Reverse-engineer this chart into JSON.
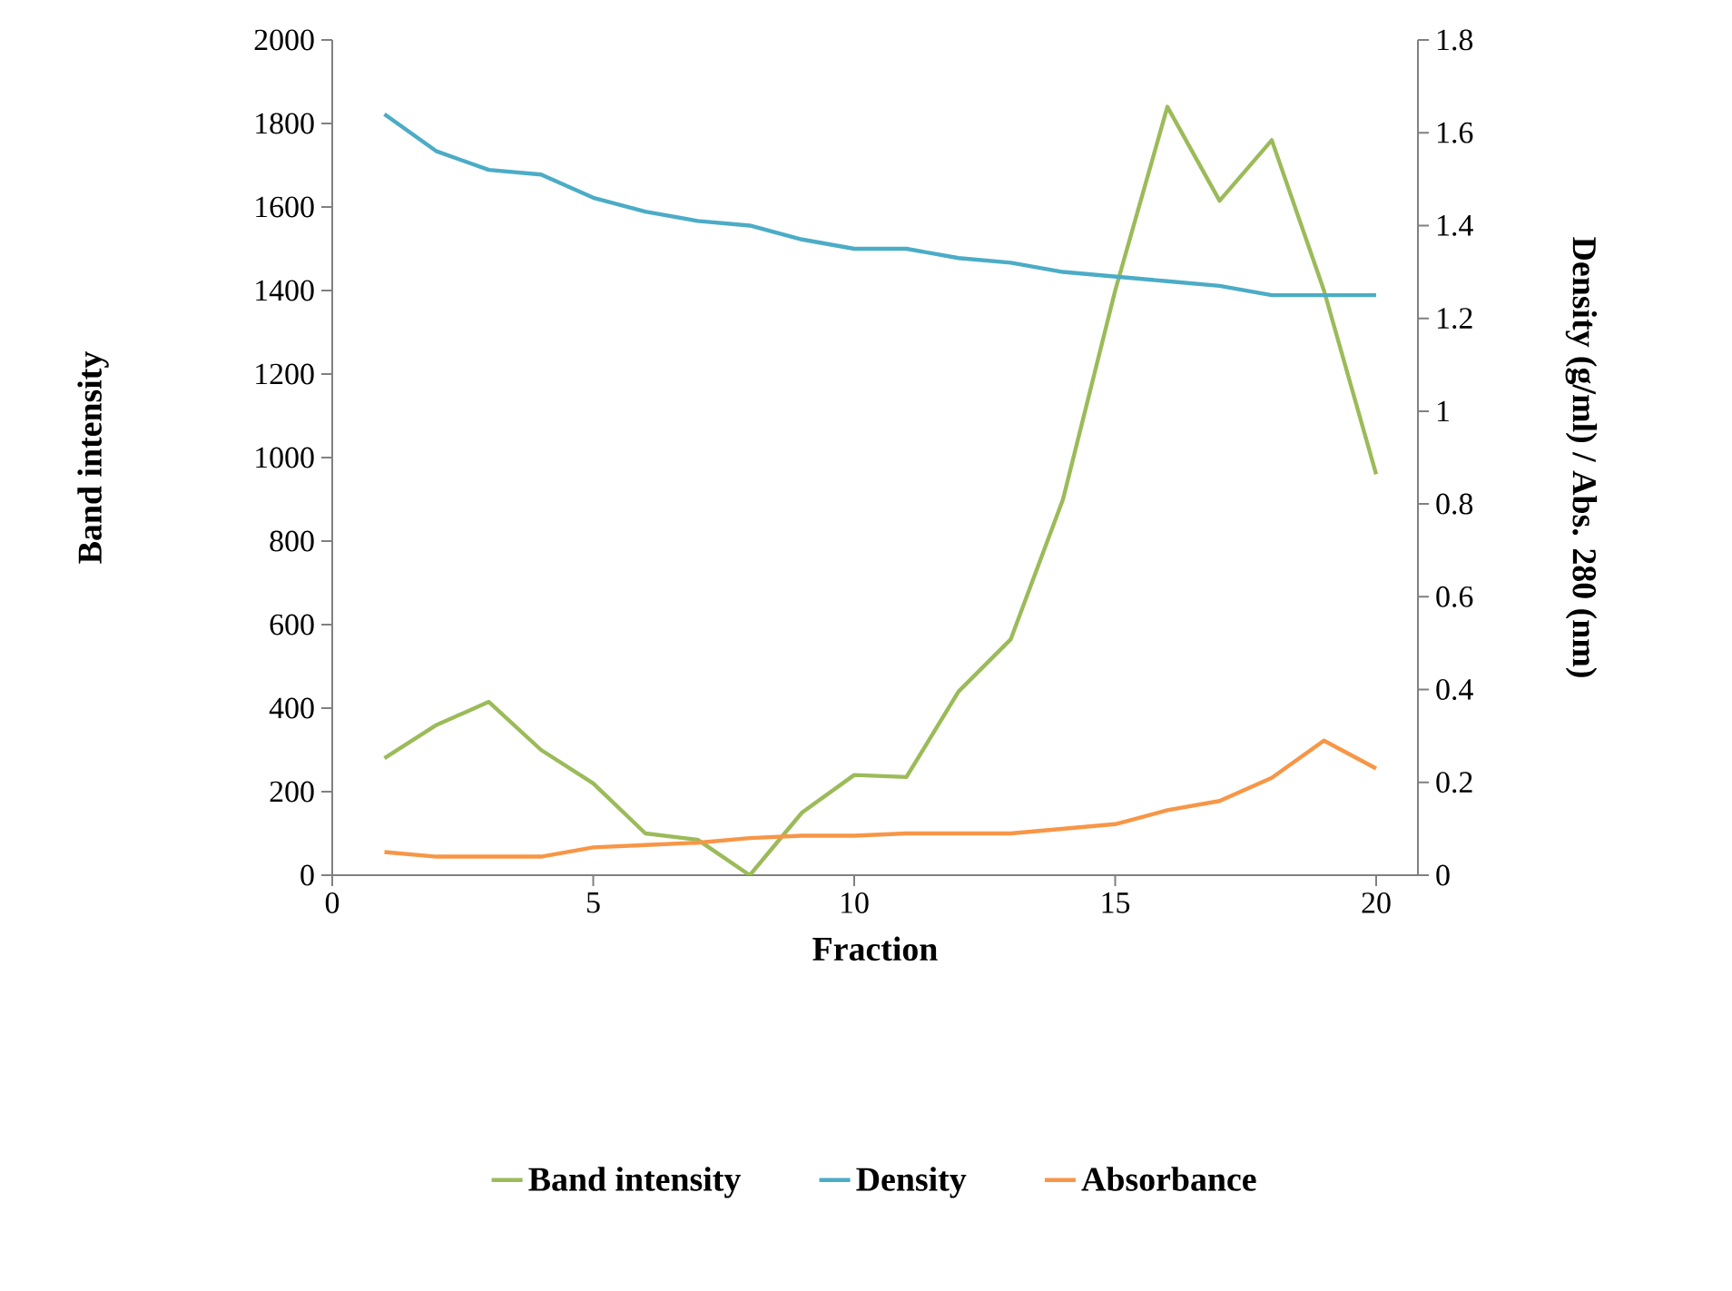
{
  "chart_data": {
    "type": "line",
    "xlabel": "Fraction",
    "ylabel": "Band intensity",
    "y2label": "Density (g/ml) / Abs. 280 (nm)",
    "legend": "bottom",
    "xlim": [
      0,
      20.8
    ],
    "xticks": [
      0,
      5,
      10,
      15,
      20
    ],
    "ylim": [
      0,
      2000
    ],
    "yticks": [
      0,
      200,
      400,
      600,
      800,
      1000,
      1200,
      1400,
      1600,
      1800,
      2000
    ],
    "y2lim": [
      0,
      1.8
    ],
    "y2ticks": [
      0,
      0.2,
      0.4,
      0.6,
      0.8,
      1,
      1.2,
      1.4,
      1.6,
      1.8
    ],
    "series": [
      {
        "name": "Band intensity",
        "color": "#9bbb59",
        "x": [
          1,
          2,
          3,
          4,
          5,
          6,
          7,
          8,
          9,
          10,
          11,
          12,
          13,
          14,
          15,
          16,
          17,
          18,
          19,
          20
        ],
        "values": [
          280,
          360,
          415,
          300,
          220,
          100,
          85,
          0,
          150,
          240,
          235,
          440,
          565,
          900,
          1400,
          1840,
          1615,
          1760,
          1400,
          960
        ]
      },
      {
        "name": "Density",
        "color": "#4bacc6",
        "axis": "y2",
        "x": [
          1,
          2,
          3,
          4,
          5,
          6,
          7,
          8,
          9,
          10,
          11,
          12,
          13,
          14,
          15,
          16,
          17,
          18,
          19,
          20
        ],
        "values": [
          1.64,
          1.56,
          1.52,
          1.51,
          1.46,
          1.43,
          1.41,
          1.4,
          1.37,
          1.35,
          1.35,
          1.33,
          1.32,
          1.3,
          1.29,
          1.28,
          1.27,
          1.25,
          1.25,
          1.25
        ]
      },
      {
        "name": "Absorbance",
        "color": "#f79646",
        "axis": "y2",
        "x": [
          1,
          2,
          3,
          4,
          5,
          6,
          7,
          8,
          9,
          10,
          11,
          12,
          13,
          14,
          15,
          16,
          17,
          18,
          19,
          20
        ],
        "values": [
          0.05,
          0.04,
          0.04,
          0.04,
          0.06,
          0.065,
          0.07,
          0.08,
          0.085,
          0.085,
          0.09,
          0.09,
          0.09,
          0.1,
          0.11,
          0.14,
          0.16,
          0.21,
          0.29,
          0.23
        ]
      }
    ]
  }
}
